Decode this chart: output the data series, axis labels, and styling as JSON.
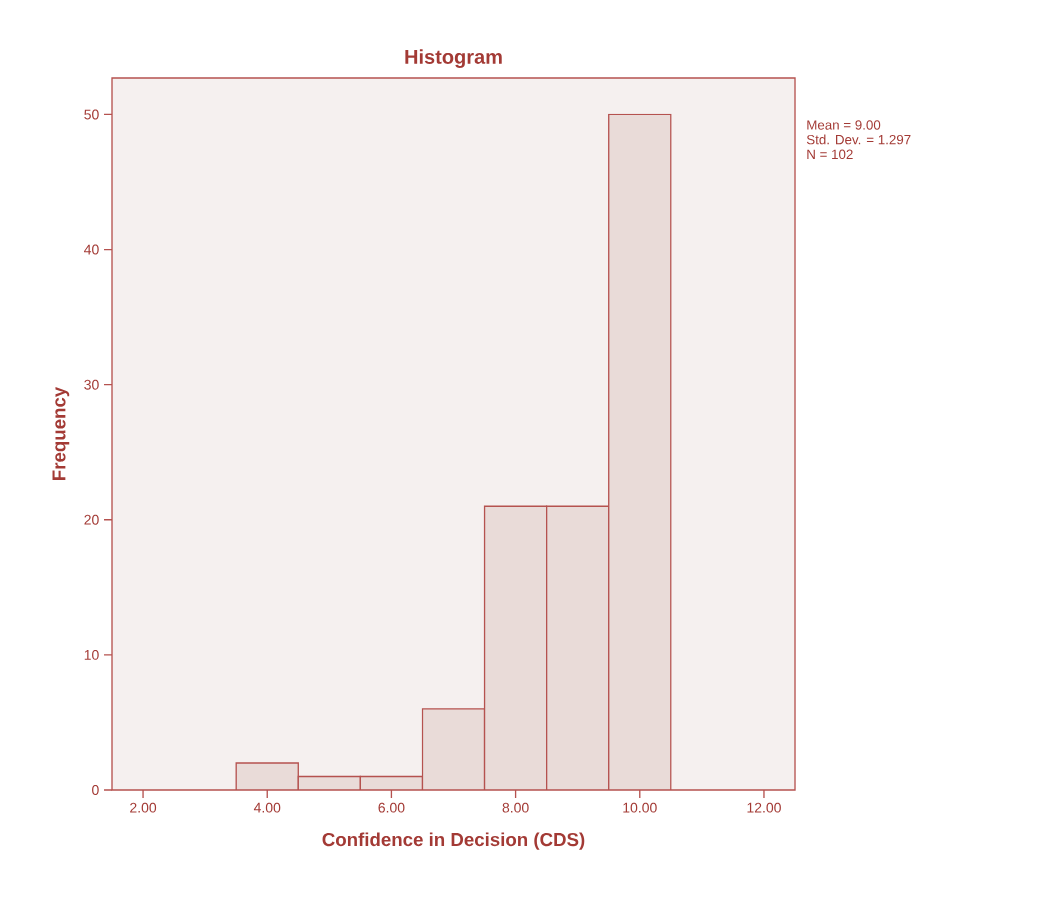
{
  "chart_data": {
    "type": "histogram",
    "title": "Histogram",
    "xlabel": "Confidence in Decision (CDS)",
    "ylabel": "Frequency",
    "bins": [
      3.5,
      4.5,
      5.5,
      6.5,
      7.5,
      8.5,
      9.5,
      10.5
    ],
    "values": [
      2,
      1,
      1,
      6,
      21,
      21,
      50
    ],
    "color": "#e9dbd8",
    "xlim": [
      1.5,
      12.5
    ],
    "ylim": [
      0,
      52.7
    ],
    "xticks": [
      {
        "value": 2,
        "label": "2.00"
      },
      {
        "value": 4,
        "label": "4.00"
      },
      {
        "value": 6,
        "label": "6.00"
      },
      {
        "value": 8,
        "label": "8.00"
      },
      {
        "value": 10,
        "label": "10.00"
      },
      {
        "value": 12,
        "label": "12.00"
      }
    ],
    "yticks": [
      0,
      10,
      20,
      30,
      40,
      50
    ],
    "annotations": [
      "Mean = 9.00",
      "Std. Dev. = 1.297",
      "N = 102"
    ]
  }
}
